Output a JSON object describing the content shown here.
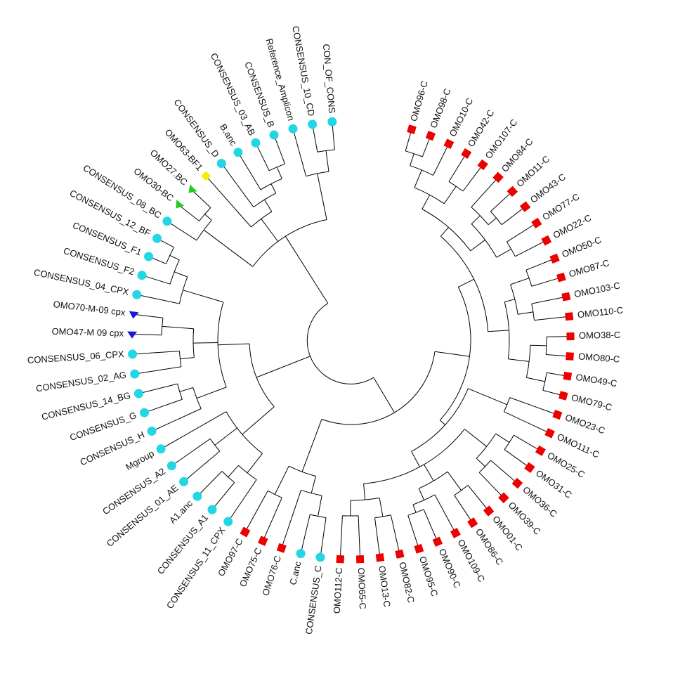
{
  "figure": {
    "type": "circular-phylogenetic-tree"
  },
  "marker_colors": {
    "reference-consensus": "#22d6e6",
    "omo-subtype-c": "#ee0000",
    "omo-recombinant-bf": "#f2ee00",
    "omo-recombinant-bc": "#22cc22",
    "omo-crf09-cpx": "#1a1ad6"
  },
  "taxa": [
    {
      "label": "OMO96-C",
      "marker": "square",
      "group": "omo-subtype-c"
    },
    {
      "label": "OMO98-C",
      "marker": "square",
      "group": "omo-subtype-c"
    },
    {
      "label": "OMO10-C",
      "marker": "square",
      "group": "omo-subtype-c"
    },
    {
      "label": "OMO42-C",
      "marker": "square",
      "group": "omo-subtype-c"
    },
    {
      "label": "OMO107-C",
      "marker": "square",
      "group": "omo-subtype-c"
    },
    {
      "label": "OMO84-C",
      "marker": "square",
      "group": "omo-subtype-c"
    },
    {
      "label": "OMO11-C",
      "marker": "square",
      "group": "omo-subtype-c"
    },
    {
      "label": "OMO43-C",
      "marker": "square",
      "group": "omo-subtype-c"
    },
    {
      "label": "OMO77-C",
      "marker": "square",
      "group": "omo-subtype-c"
    },
    {
      "label": "OMO22-C",
      "marker": "square",
      "group": "omo-subtype-c"
    },
    {
      "label": "OMO50-C",
      "marker": "square",
      "group": "omo-subtype-c"
    },
    {
      "label": "OMO87-C",
      "marker": "square",
      "group": "omo-subtype-c"
    },
    {
      "label": "OMO103-C",
      "marker": "square",
      "group": "omo-subtype-c"
    },
    {
      "label": "OMO110-C",
      "marker": "square",
      "group": "omo-subtype-c"
    },
    {
      "label": "OMO38-C",
      "marker": "square",
      "group": "omo-subtype-c"
    },
    {
      "label": "OMO80-C",
      "marker": "square",
      "group": "omo-subtype-c"
    },
    {
      "label": "OMO49-C",
      "marker": "square",
      "group": "omo-subtype-c"
    },
    {
      "label": "OMO79-C",
      "marker": "square",
      "group": "omo-subtype-c"
    },
    {
      "label": "OMO23-C",
      "marker": "square",
      "group": "omo-subtype-c"
    },
    {
      "label": "OMO111-C",
      "marker": "square",
      "group": "omo-subtype-c"
    },
    {
      "label": "OMO25-C",
      "marker": "square",
      "group": "omo-subtype-c"
    },
    {
      "label": "OMO31-C",
      "marker": "square",
      "group": "omo-subtype-c"
    },
    {
      "label": "OMO36-C",
      "marker": "square",
      "group": "omo-subtype-c"
    },
    {
      "label": "OMO39-C",
      "marker": "square",
      "group": "omo-subtype-c"
    },
    {
      "label": "OMO01-C",
      "marker": "square",
      "group": "omo-subtype-c"
    },
    {
      "label": "OMO86-C",
      "marker": "square",
      "group": "omo-subtype-c"
    },
    {
      "label": "OMO109-C",
      "marker": "square",
      "group": "omo-subtype-c"
    },
    {
      "label": "OMO90-C",
      "marker": "square",
      "group": "omo-subtype-c"
    },
    {
      "label": "OMO95-C",
      "marker": "square",
      "group": "omo-subtype-c"
    },
    {
      "label": "OMO82-C",
      "marker": "square",
      "group": "omo-subtype-c"
    },
    {
      "label": "OMO13-C",
      "marker": "square",
      "group": "omo-subtype-c"
    },
    {
      "label": "OMO65-C",
      "marker": "square",
      "group": "omo-subtype-c"
    },
    {
      "label": "OMO112-C",
      "marker": "square",
      "group": "omo-subtype-c"
    },
    {
      "label": "CONSENSUS_C",
      "marker": "circle",
      "group": "reference-consensus"
    },
    {
      "label": "C.anc",
      "marker": "circle",
      "group": "reference-consensus"
    },
    {
      "label": "OMO76-C",
      "marker": "square",
      "group": "omo-subtype-c"
    },
    {
      "label": "OMO75-C",
      "marker": "square",
      "group": "omo-subtype-c"
    },
    {
      "label": "OMO97-C",
      "marker": "square",
      "group": "omo-subtype-c"
    },
    {
      "label": "CONSENSUS_11_CPX",
      "marker": "circle",
      "group": "reference-consensus"
    },
    {
      "label": "CONSENSUS_A1",
      "marker": "circle",
      "group": "reference-consensus"
    },
    {
      "label": "A1.anc",
      "marker": "circle",
      "group": "reference-consensus"
    },
    {
      "label": "CONSENSUS_01_AE",
      "marker": "circle",
      "group": "reference-consensus"
    },
    {
      "label": "CONSENSUS_A2",
      "marker": "circle",
      "group": "reference-consensus"
    },
    {
      "label": "Mgroup",
      "marker": "circle",
      "group": "reference-consensus"
    },
    {
      "label": "CONSENSUS_H",
      "marker": "circle",
      "group": "reference-consensus"
    },
    {
      "label": "CONSENSUS_G",
      "marker": "circle",
      "group": "reference-consensus"
    },
    {
      "label": "CONSENSUS_14_BG",
      "marker": "circle",
      "group": "reference-consensus"
    },
    {
      "label": "CONSENSUS_02_AG",
      "marker": "circle",
      "group": "reference-consensus"
    },
    {
      "label": "CONSENSUS_06_CPX",
      "marker": "circle",
      "group": "reference-consensus"
    },
    {
      "label": "OMO47-M 09 cpx",
      "marker": "triangle",
      "group": "omo-crf09-cpx"
    },
    {
      "label": "OMO70-M-09 cpx",
      "marker": "triangle",
      "group": "omo-crf09-cpx"
    },
    {
      "label": "CONSENSUS_04_CPX",
      "marker": "circle",
      "group": "reference-consensus"
    },
    {
      "label": "CONSENSUS_F2",
      "marker": "circle",
      "group": "reference-consensus"
    },
    {
      "label": "CONSENSUS_F1",
      "marker": "circle",
      "group": "reference-consensus"
    },
    {
      "label": "CONSENSUS_12_BF",
      "marker": "circle",
      "group": "reference-consensus"
    },
    {
      "label": "CONSENSUS_08_BC",
      "marker": "circle",
      "group": "reference-consensus"
    },
    {
      "label": "OMO30-BC",
      "marker": "triangle",
      "group": "omo-recombinant-bc"
    },
    {
      "label": "OMO27.BC",
      "marker": "triangle",
      "group": "omo-recombinant-bc"
    },
    {
      "label": "OMO63-BF1",
      "marker": "diamond",
      "group": "omo-recombinant-bf"
    },
    {
      "label": "CONSENSUS_D",
      "marker": "circle",
      "group": "reference-consensus"
    },
    {
      "label": "B.anc",
      "marker": "circle",
      "group": "reference-consensus"
    },
    {
      "label": "CONSENSUS_03_AB",
      "marker": "circle",
      "group": "reference-consensus"
    },
    {
      "label": "CONSENSUS_B",
      "marker": "circle",
      "group": "reference-consensus"
    },
    {
      "label": "Reference_Amplicon",
      "marker": "circle",
      "group": "reference-consensus"
    },
    {
      "label": "CONSENSUS_10_CD",
      "marker": "circle",
      "group": "reference-consensus"
    },
    {
      "label": "CON_OF_CONS",
      "marker": "circle",
      "group": "reference-consensus"
    }
  ]
}
